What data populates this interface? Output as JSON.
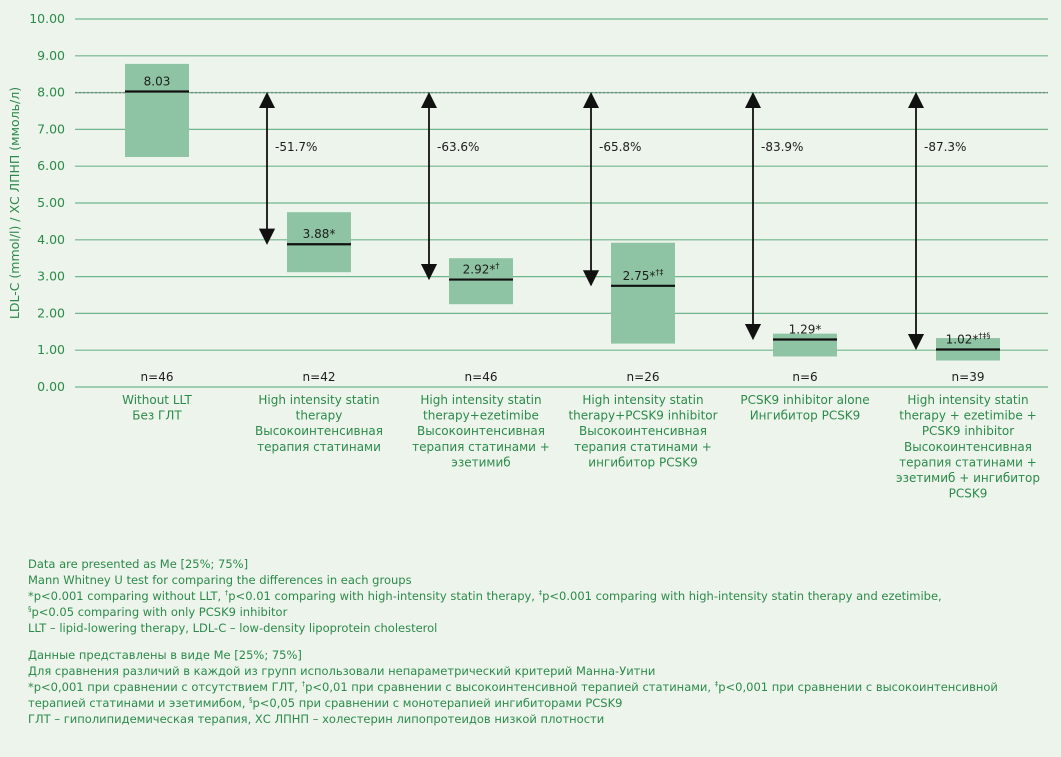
{
  "colors": {
    "background": "#edf4ec",
    "box_fill": "#8ec4a3",
    "grid": "#6fb68a",
    "axis_text": "#2c8a4a",
    "reference_line": "#7a8a82",
    "median_line": "#111111",
    "arrow": "#111111",
    "note_text": "#2c8a4a"
  },
  "chart_data": {
    "type": "box",
    "ylabel": "LDL-C (mmol/l) / ХС ЛПНП (ммоль/л)",
    "ylim": [
      0,
      10
    ],
    "yticks": [
      "0.00",
      "1.00",
      "2.00",
      "3.00",
      "4.00",
      "5.00",
      "6.00",
      "7.00",
      "8.00",
      "9.00",
      "10.00"
    ],
    "grid": true,
    "reference_line": 8.0,
    "groups": [
      {
        "label_lines": [
          "Without LLT",
          "Без ГЛТ"
        ],
        "n": "n=46",
        "median": 8.03,
        "q1": 6.25,
        "q3": 8.78,
        "median_label": "8.03",
        "median_sup": "",
        "reduction": ""
      },
      {
        "label_lines": [
          "High intensity statin",
          "therapy",
          "Высокоинтенсивная",
          "терапия статинами"
        ],
        "n": "n=42",
        "median": 3.88,
        "q1": 3.12,
        "q3": 4.75,
        "median_label": "3.88*",
        "median_sup": "",
        "reduction": "-51.7%"
      },
      {
        "label_lines": [
          "High intensity statin",
          "therapy+ezetimibe",
          "Высокоинтенсивная",
          "терапия статинами +",
          "эзетимиб"
        ],
        "n": "n=46",
        "median": 2.92,
        "q1": 2.25,
        "q3": 3.5,
        "median_label": "2.92*",
        "median_sup": "†",
        "reduction": "-63.6%"
      },
      {
        "label_lines": [
          "High intensity statin",
          "therapy+PCSK9 inhibitor",
          "Высокоинтенсивная",
          "терапия статинами +",
          "ингибитор PCSK9"
        ],
        "n": "n=26",
        "median": 2.75,
        "q1": 1.18,
        "q3": 3.92,
        "median_label": "2.75*",
        "median_sup": "†‡",
        "reduction": "-65.8%"
      },
      {
        "label_lines": [
          "PCSK9 inhibitor alone",
          "Ингибитор PCSK9"
        ],
        "n": "n=6",
        "median": 1.29,
        "q1": 0.83,
        "q3": 1.45,
        "median_label": "1.29*",
        "median_sup": "",
        "reduction": "-83.9%"
      },
      {
        "label_lines": [
          "High intensity statin",
          "therapy + ezetimibe +",
          "PCSK9 inhibitor",
          "Высокоинтенсивная",
          "терапия статинами +",
          "эзетимиб + ингибитор",
          "PCSK9"
        ],
        "n": "n=39",
        "median": 1.02,
        "q1": 0.72,
        "q3": 1.33,
        "median_label": "1.02*",
        "median_sup": "†‡§",
        "reduction": "-87.3%"
      }
    ]
  },
  "notes": {
    "en": {
      "line1": "Data are presented as Me [25%; 75%]",
      "line2": "Mann Whitney U test for comparing the differences in each groups",
      "line3a": "*p<0.001 comparing without LLT, ",
      "line3b": "p<0.01 comparing with high-intensity statin therapy, ",
      "line3c": "p<0.001 comparing with high-intensity statin therapy and ezetimibe,",
      "line4": "p<0.05 comparing with only PCSK9 inhibitor",
      "line5": "LLT – lipid-lowering therapy, LDL-C – low-density lipoprotein cholesterol"
    },
    "ru": {
      "line1": "Данные представлены в виде Me [25%; 75%]",
      "line2": "Для сравнения различий в каждой из групп использовали непараметрический критерий Манна-Уитни",
      "line3a": "*p<0,001 при сравнении с отсутствием ГЛТ, ",
      "line3b": "p<0,01 при сравнении с высокоинтенсивной терапией статинами, ",
      "line3c": "p<0,001 при сравнении с высокоинтенсивной",
      "line4a": "терапией статинами и эзетимибом, ",
      "line4b": "p<0,05 при сравнении с монотерапией ингибиторами PCSK9",
      "line5": "ГЛТ – гиполипидемическая терапия, ХС ЛПНП – холестерин липопротеидов низкой плотности"
    },
    "sup": {
      "dagger": "†",
      "ddagger": "‡",
      "section": "§"
    }
  }
}
